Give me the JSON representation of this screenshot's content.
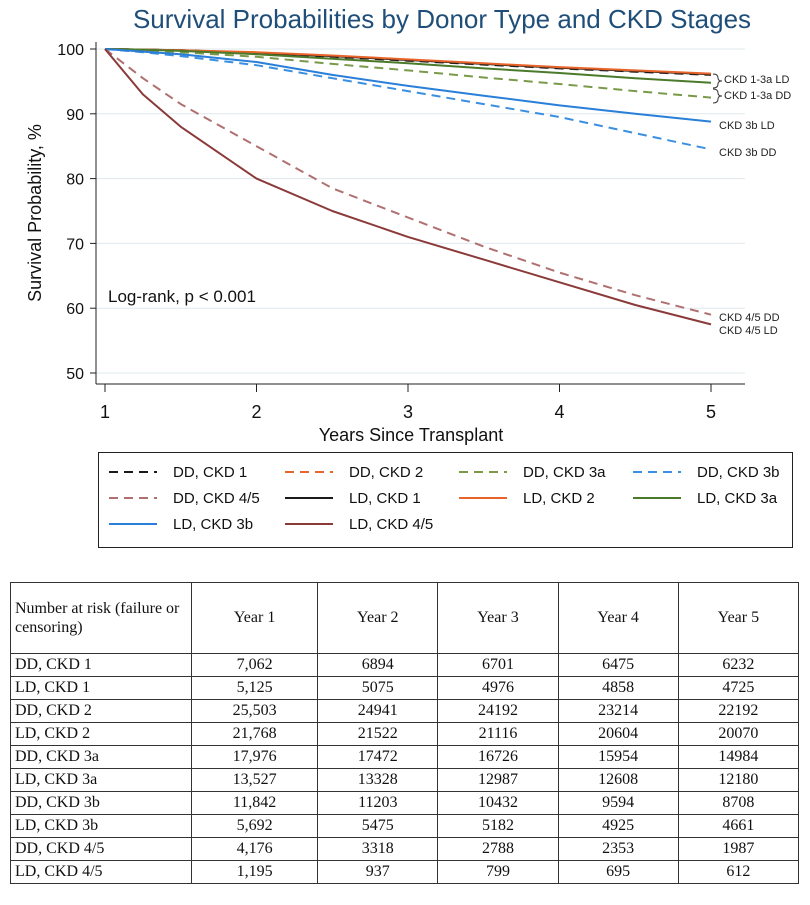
{
  "chart_data": {
    "type": "line",
    "title": "Survival Probabilities by Donor Type and CKD Stages",
    "xlabel": "Years Since Transplant",
    "ylabel": "Survival Probability, %",
    "xlim": [
      1,
      5
    ],
    "ylim": [
      50,
      100
    ],
    "xticks": [
      1,
      2,
      3,
      4,
      5
    ],
    "yticks": [
      50,
      60,
      70,
      80,
      90,
      100
    ],
    "annotation": "Log-rank, p < 0.001",
    "end_labels": [
      "CKD 1-3a LD",
      "CKD 1-3a DD",
      "CKD 3b LD",
      "CKD 3b DD",
      "CKD 4/5 DD",
      "CKD 4/5 LD"
    ],
    "x": [
      1,
      1.25,
      1.5,
      2,
      2.5,
      3,
      3.5,
      4,
      4.5,
      5
    ],
    "series": [
      {
        "name": "DD, CKD 1",
        "color": "#1a1a1a",
        "dash": true,
        "values": [
          100,
          99.9,
          99.8,
          99.4,
          98.8,
          98.2,
          97.6,
          97.0,
          96.5,
          96.0
        ]
      },
      {
        "name": "DD, CKD 2",
        "color": "#e8642a",
        "dash": true,
        "values": [
          100,
          99.9,
          99.8,
          99.4,
          98.9,
          98.3,
          97.7,
          97.1,
          96.6,
          96.1
        ]
      },
      {
        "name": "DD, CKD 3a",
        "color": "#7a9a4a",
        "dash": true,
        "values": [
          100,
          99.8,
          99.5,
          98.8,
          97.7,
          96.7,
          95.6,
          94.6,
          93.5,
          92.5
        ]
      },
      {
        "name": "DD, CKD 3b",
        "color": "#3a8fe0",
        "dash": true,
        "values": [
          100,
          99.5,
          98.9,
          97.5,
          95.5,
          93.5,
          91.5,
          89.5,
          87.0,
          84.5
        ]
      },
      {
        "name": "DD, CKD 4/5",
        "color": "#b07070",
        "dash": true,
        "values": [
          100,
          95.5,
          91.5,
          85.0,
          78.5,
          74.0,
          69.5,
          65.5,
          62.0,
          59.0
        ]
      },
      {
        "name": "LD, CKD 1",
        "color": "#1a1a1a",
        "dash": false,
        "values": [
          100,
          99.9,
          99.8,
          99.4,
          98.9,
          98.3,
          97.7,
          97.1,
          96.6,
          96.1
        ]
      },
      {
        "name": "LD, CKD 2",
        "color": "#e8642a",
        "dash": false,
        "values": [
          100,
          99.9,
          99.8,
          99.5,
          99.0,
          98.4,
          97.8,
          97.2,
          96.7,
          96.2
        ]
      },
      {
        "name": "LD, CKD 3a",
        "color": "#4a7a2a",
        "dash": false,
        "values": [
          100,
          99.9,
          99.7,
          99.2,
          98.5,
          97.8,
          97.0,
          96.3,
          95.5,
          94.8
        ]
      },
      {
        "name": "LD, CKD 3b",
        "color": "#2a7fd8",
        "dash": false,
        "values": [
          100,
          99.6,
          99.2,
          98.0,
          96.0,
          94.3,
          92.8,
          91.3,
          90.0,
          88.8
        ]
      },
      {
        "name": "LD, CKD 4/5",
        "color": "#8b3a3a",
        "dash": false,
        "values": [
          100,
          93.0,
          88.0,
          80.0,
          75.0,
          71.0,
          67.5,
          64.0,
          60.5,
          57.5
        ]
      }
    ]
  },
  "risk_table": {
    "header": [
      "Number at risk (failure or censoring)",
      "Year 1",
      "Year 2",
      "Year 3",
      "Year 4",
      "Year 5"
    ],
    "rows": [
      [
        "DD, CKD 1",
        "7,062",
        "6894",
        "6701",
        "6475",
        "6232"
      ],
      [
        "LD, CKD 1",
        "5,125",
        "5075",
        "4976",
        "4858",
        "4725"
      ],
      [
        "DD, CKD 2",
        "25,503",
        "24941",
        "24192",
        "23214",
        "22192"
      ],
      [
        "LD, CKD 2",
        "21,768",
        "21522",
        "21116",
        "20604",
        "20070"
      ],
      [
        "DD, CKD 3a",
        "17,976",
        "17472",
        "16726",
        "15954",
        "14984"
      ],
      [
        "LD, CKD 3a",
        "13,527",
        "13328",
        "12987",
        "12608",
        "12180"
      ],
      [
        "DD, CKD 3b",
        "11,842",
        "11203",
        "10432",
        "9594",
        "8708"
      ],
      [
        "LD, CKD 3b",
        "5,692",
        "5475",
        "5182",
        "4925",
        "4661"
      ],
      [
        "DD, CKD 4/5",
        "4,176",
        "3318",
        "2788",
        "2353",
        "1987"
      ],
      [
        "LD, CKD 4/5",
        "1,195",
        "937",
        "799",
        "695",
        "612"
      ]
    ]
  }
}
